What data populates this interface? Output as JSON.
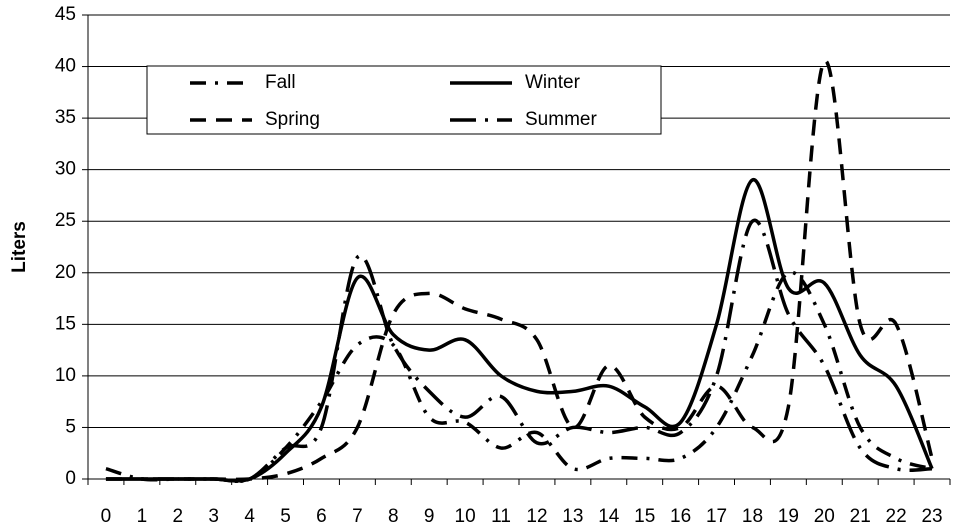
{
  "chart_data": {
    "type": "line",
    "ylabel": "Liters",
    "categories": [
      "0",
      "1",
      "2",
      "3",
      "4",
      "5",
      "6",
      "7",
      "8",
      "9",
      "10",
      "11",
      "12",
      "13",
      "14",
      "15",
      "16",
      "17",
      "18",
      "19",
      "20",
      "21",
      "22",
      "23"
    ],
    "series": [
      {
        "name": "Fall",
        "color": "#000000",
        "dash": "dashdot",
        "values": [
          1,
          0,
          0,
          0,
          0,
          3,
          7.5,
          13,
          13,
          6,
          5.5,
          3,
          4.5,
          1,
          2,
          2,
          2,
          5,
          12,
          20,
          15,
          5,
          2,
          1
        ]
      },
      {
        "name": "Spring",
        "color": "#000000",
        "dash": "dashed",
        "values": [
          0,
          0,
          0,
          0,
          0,
          0.5,
          2,
          5,
          16,
          18,
          16.5,
          15.5,
          13.5,
          5,
          11,
          6,
          5,
          9,
          5,
          7,
          40.5,
          15,
          15,
          2
        ]
      },
      {
        "name": "Winter",
        "color": "#000000",
        "dash": "solid",
        "values": [
          0,
          0,
          0,
          0,
          0,
          2.5,
          7,
          19.5,
          14,
          12.5,
          13.5,
          10,
          8.5,
          8.5,
          9,
          7,
          5.5,
          15,
          29,
          18.5,
          19,
          12,
          9,
          1
        ]
      },
      {
        "name": "Summer",
        "color": "#000000",
        "dash": "longdashdot",
        "values": [
          0,
          0,
          0,
          0,
          0,
          3,
          5,
          21.5,
          13,
          8.5,
          6,
          8,
          3.5,
          5,
          4.5,
          5,
          4.5,
          10,
          25,
          16,
          11,
          3,
          1,
          1
        ]
      }
    ],
    "ylim": [
      0,
      45
    ],
    "yticks": [
      0,
      5,
      10,
      15,
      20,
      25,
      30,
      35,
      40,
      45
    ],
    "grid": true,
    "legend": "upper left"
  }
}
